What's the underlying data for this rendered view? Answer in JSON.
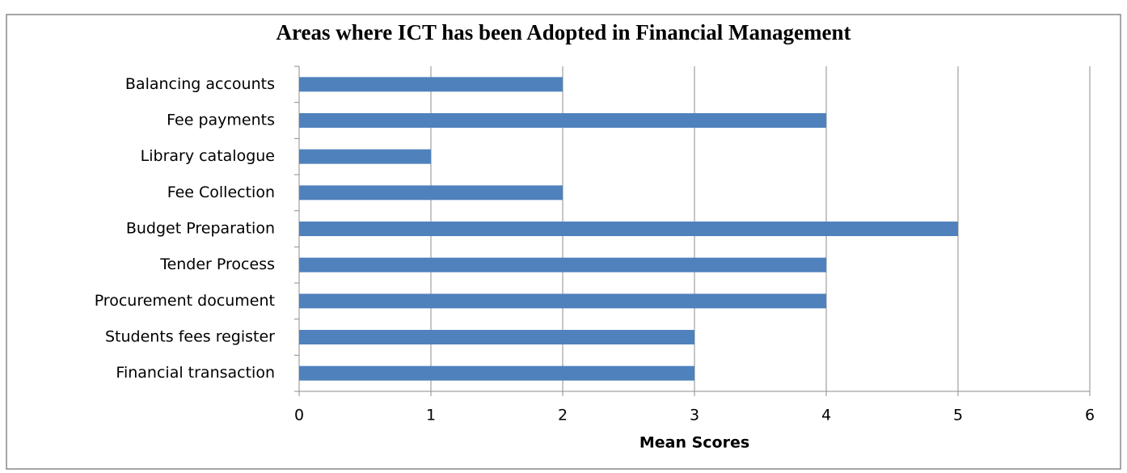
{
  "chart_data": {
    "type": "barh",
    "title": "Areas where ICT has been Adopted in Financial Management",
    "categories": [
      "Balancing accounts",
      "Fee payments",
      "Library catalogue",
      "Fee Collection",
      "Budget Preparation",
      "Tender Process",
      "Procurement document",
      "Students fees register",
      "Financial transaction"
    ],
    "values": [
      2,
      4,
      1,
      2,
      5,
      4,
      4,
      3,
      3
    ],
    "color": "#4f81bd",
    "xlabel": "Mean Scores",
    "xlim": [
      0,
      6
    ],
    "xticks": [
      0,
      1,
      2,
      3,
      4,
      5,
      6
    ],
    "grid": true
  }
}
